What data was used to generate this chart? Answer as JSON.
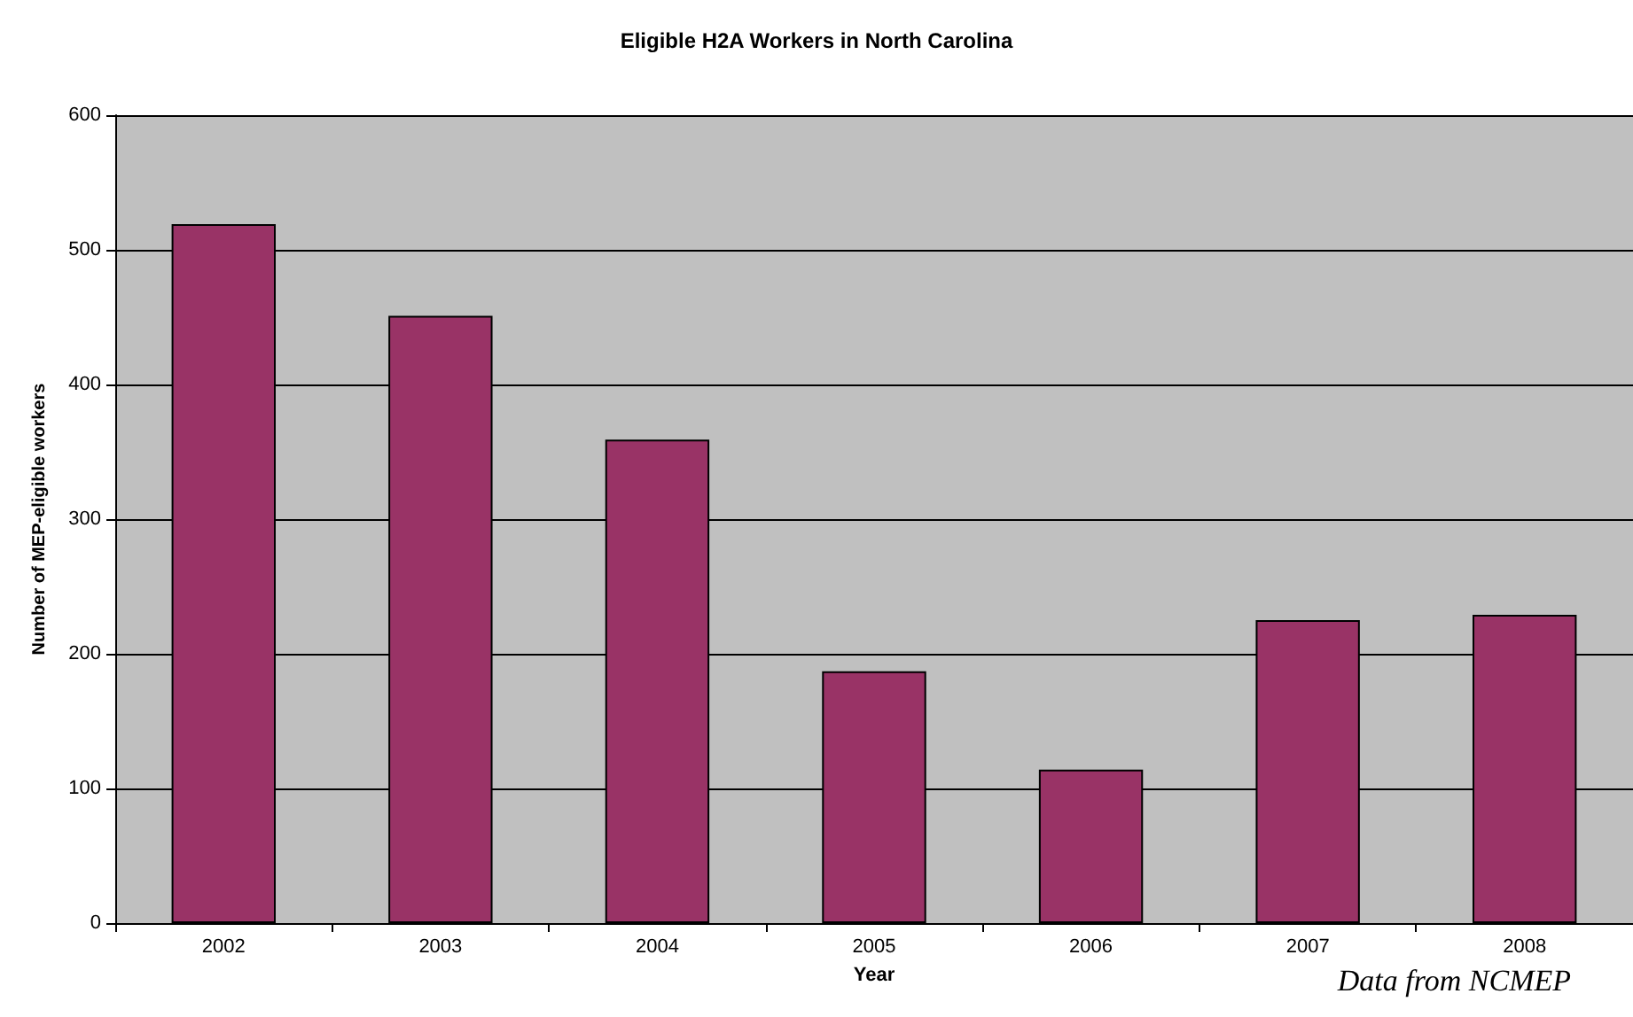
{
  "chart_data": {
    "type": "bar",
    "title": "Eligible H2A Workers in North Carolina",
    "xlabel": "Year",
    "ylabel": "Number of MEP-eligible workers",
    "categories": [
      "2002",
      "2003",
      "2004",
      "2005",
      "2006",
      "2007",
      "2008"
    ],
    "values": [
      519,
      451,
      359,
      187,
      114,
      225,
      229
    ],
    "color": "#993366",
    "ylim": [
      0,
      600
    ],
    "yticks": [
      0,
      100,
      200,
      300,
      400,
      500,
      600
    ],
    "grid": "y",
    "annotations": [
      "Data from NCMEP"
    ]
  }
}
